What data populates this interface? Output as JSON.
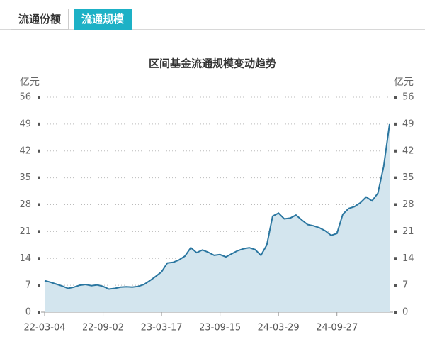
{
  "tabs": {
    "items": [
      "流通份额",
      "流通规模"
    ],
    "active": 1
  },
  "chart_data": {
    "type": "area",
    "title": "区间基金流通规模变动趋势",
    "y_label": "亿元",
    "y2_label": "亿元",
    "categories": [
      "22-03-04",
      null,
      null,
      null,
      null,
      null,
      null,
      null,
      null,
      null,
      "22-09-02",
      null,
      null,
      null,
      null,
      null,
      null,
      null,
      null,
      null,
      "23-03-17",
      null,
      null,
      null,
      null,
      null,
      null,
      null,
      null,
      null,
      "23-09-15",
      null,
      null,
      null,
      null,
      null,
      null,
      null,
      null,
      null,
      "24-03-29",
      null,
      null,
      null,
      null,
      null,
      null,
      null,
      null,
      null,
      "24-09-27",
      null,
      null,
      null,
      null,
      null,
      null,
      null,
      null,
      null
    ],
    "series": [
      {
        "color": "#2a76a0",
        "fill": "#d3e5ee",
        "values": [
          8.2,
          7.8,
          7.3,
          6.8,
          6.2,
          6.5,
          7.0,
          7.2,
          6.9,
          7.1,
          6.7,
          6.0,
          6.2,
          6.5,
          6.6,
          6.5,
          6.7,
          7.2,
          8.2,
          9.3,
          10.5,
          12.8,
          13.0,
          13.6,
          14.6,
          16.8,
          15.5,
          16.2,
          15.6,
          14.8,
          15.0,
          14.4,
          15.2,
          16.0,
          16.5,
          16.8,
          16.3,
          14.8,
          17.5,
          25.0,
          25.8,
          24.3,
          24.5,
          25.3,
          24.0,
          22.8,
          22.5,
          22.0,
          21.2,
          20.0,
          20.5,
          25.5,
          27.0,
          27.5,
          28.5,
          30.0,
          29.0,
          31.0,
          38.0,
          49.0
        ]
      }
    ],
    "ylim": [
      0,
      56
    ],
    "yticks": [
      0,
      7,
      14,
      21,
      28,
      35,
      42,
      49,
      56
    ],
    "y2lim": [
      0,
      56
    ],
    "y2ticks": [
      0,
      7,
      14,
      21,
      28,
      35,
      42,
      49,
      56
    ],
    "grid": true
  }
}
